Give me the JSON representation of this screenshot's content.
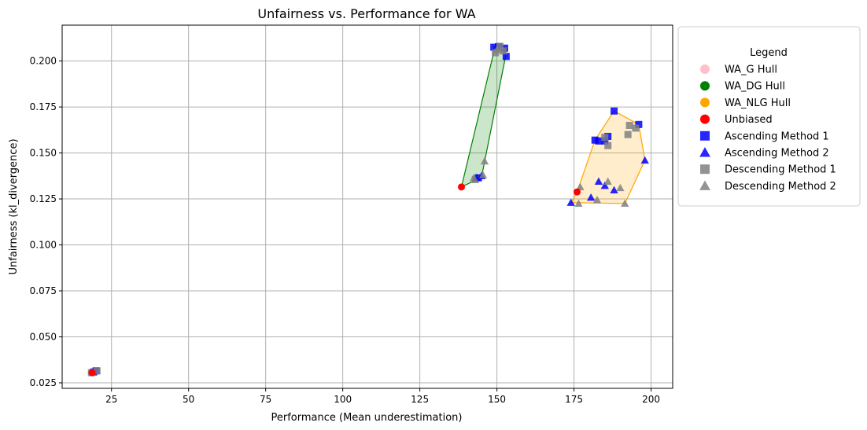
{
  "chart_data": {
    "type": "scatter",
    "title": "Unfairness vs. Performance for WA",
    "xlabel": "Performance (Mean underestimation)",
    "ylabel": "Unfairness (kl_divergence)",
    "xlim": [
      9,
      207
    ],
    "ylim": [
      0.022,
      0.2195
    ],
    "xticks": [
      25,
      50,
      75,
      100,
      125,
      150,
      175,
      200
    ],
    "yticks": [
      0.025,
      0.05,
      0.075,
      0.1,
      0.125,
      0.15,
      0.175,
      0.2
    ],
    "ytick_labels": [
      "0.025",
      "0.050",
      "0.075",
      "0.100",
      "0.125",
      "0.150",
      "0.175",
      "0.200"
    ],
    "grid": true,
    "legend": {
      "title": "Legend",
      "placement": "outside-right-top",
      "entries": [
        {
          "label": "WA_G Hull",
          "marker": "circle",
          "color": "#ffc0cb"
        },
        {
          "label": "WA_DG Hull",
          "marker": "circle",
          "color": "#008000"
        },
        {
          "label": "WA_NLG Hull",
          "marker": "circle",
          "color": "#ffa500"
        },
        {
          "label": "Unbiased",
          "marker": "circle",
          "color": "#ff0000"
        },
        {
          "label": "Ascending Method 1",
          "marker": "square",
          "color": "#0000ff"
        },
        {
          "label": "Ascending Method 2",
          "marker": "triangle",
          "color": "#0000ff"
        },
        {
          "label": "Descending Method 1",
          "marker": "square",
          "color": "#808080"
        },
        {
          "label": "Descending Method 2",
          "marker": "triangle",
          "color": "#808080"
        }
      ]
    },
    "hulls": [
      {
        "name": "WA_G Hull",
        "edge": "#ffc0cb",
        "fill": "#ffc0cb",
        "points": [
          [
            18.5,
            0.0305
          ],
          [
            20.5,
            0.0305
          ],
          [
            20.5,
            0.0318
          ],
          [
            18.5,
            0.0318
          ]
        ]
      },
      {
        "name": "WA_DG Hull",
        "edge": "#008000",
        "fill": "#008000",
        "points": [
          [
            138.5,
            0.1315
          ],
          [
            145,
            0.1368
          ],
          [
            152.8,
            0.2025
          ],
          [
            152.6,
            0.2075
          ],
          [
            151,
            0.2085
          ],
          [
            149,
            0.2075
          ],
          [
            148.8,
            0.2035
          ]
        ]
      },
      {
        "name": "WA_NLG Hull",
        "edge": "#ffa500",
        "fill": "#ffa500",
        "points": [
          [
            174,
            0.123
          ],
          [
            191.5,
            0.1225
          ],
          [
            198,
            0.146
          ],
          [
            196,
            0.1655
          ],
          [
            188,
            0.1728
          ],
          [
            181.8,
            0.157
          ],
          [
            176,
            0.1288
          ]
        ]
      }
    ],
    "series": [
      {
        "name": "Unbiased",
        "marker": "circle",
        "color": "#ff0000",
        "points": [
          [
            18.7,
            0.0305
          ],
          [
            138.5,
            0.1315
          ],
          [
            176,
            0.1288
          ]
        ]
      },
      {
        "name": "Ascending Method 1",
        "marker": "square",
        "color": "#0000ff",
        "points": [
          [
            19.2,
            0.0309
          ],
          [
            20,
            0.0315
          ],
          [
            149,
            0.2075
          ],
          [
            150.5,
            0.2078
          ],
          [
            152.5,
            0.207
          ],
          [
            153,
            0.2025
          ],
          [
            144,
            0.1365
          ],
          [
            181.8,
            0.157
          ],
          [
            183,
            0.1565
          ],
          [
            186,
            0.159
          ],
          [
            188,
            0.1728
          ],
          [
            196,
            0.1655
          ],
          [
            185,
            0.1565
          ]
        ]
      },
      {
        "name": "Ascending Method 2",
        "marker": "triangle",
        "color": "#0000ff",
        "points": [
          [
            143.5,
            0.1365
          ],
          [
            145,
            0.1375
          ],
          [
            174,
            0.123
          ],
          [
            180.5,
            0.1258
          ],
          [
            183,
            0.1345
          ],
          [
            185,
            0.1322
          ],
          [
            188,
            0.1298
          ],
          [
            198,
            0.146
          ]
        ]
      },
      {
        "name": "Descending Method 1",
        "marker": "square",
        "color": "#808080",
        "points": [
          [
            18.5,
            0.0305
          ],
          [
            20.3,
            0.0315
          ],
          [
            149.5,
            0.2045
          ],
          [
            151,
            0.208
          ],
          [
            152,
            0.2055
          ],
          [
            143,
            0.1355
          ],
          [
            185,
            0.1585
          ],
          [
            186,
            0.154
          ],
          [
            192.5,
            0.16
          ],
          [
            193,
            0.165
          ],
          [
            195,
            0.1635
          ]
        ]
      },
      {
        "name": "Descending Method 2",
        "marker": "triangle",
        "color": "#808080",
        "points": [
          [
            142.5,
            0.1365
          ],
          [
            145.5,
            0.138
          ],
          [
            146,
            0.1455
          ],
          [
            150,
            0.2062
          ],
          [
            176.5,
            0.1225
          ],
          [
            177,
            0.1315
          ],
          [
            182.5,
            0.1245
          ],
          [
            186,
            0.1345
          ],
          [
            190,
            0.131
          ],
          [
            191.5,
            0.1225
          ]
        ]
      }
    ]
  }
}
